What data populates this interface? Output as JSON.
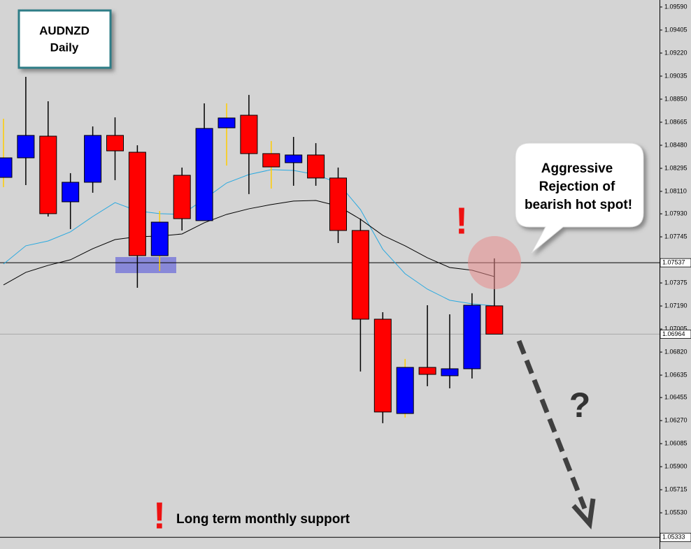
{
  "chart_data": {
    "type": "candlestick",
    "title": "AUDNZD",
    "subtitle": "Daily",
    "open": [
      1.08222,
      1.08379,
      1.08553,
      1.08026,
      1.08183,
      1.08559,
      1.08424,
      1.07594,
      1.08239,
      1.07875,
      1.0862,
      1.08721,
      1.08413,
      1.0834,
      1.08402,
      1.08217,
      1.07796,
      1.07084,
      1.06327,
      1.06697,
      1.0663,
      1.06686,
      1.07191
    ],
    "high": [
      1.08693,
      1.09029,
      1.08833,
      1.08256,
      1.08631,
      1.08704,
      1.0848,
      1.07953,
      1.08301,
      1.08816,
      1.08816,
      1.08884,
      1.08514,
      1.08547,
      1.08497,
      1.08301,
      1.07891,
      1.0714,
      1.06765,
      1.07196,
      1.07123,
      1.07292,
      1.07572
    ],
    "low": [
      1.08144,
      1.0816,
      1.07908,
      1.07807,
      1.08099,
      1.082,
      1.07336,
      1.07471,
      1.07796,
      1.07875,
      1.08317,
      1.08088,
      1.08132,
      1.08155,
      1.08155,
      1.07695,
      1.06664,
      1.06249,
      1.06294,
      1.06546,
      1.06529,
      1.06608,
      1.06964
    ],
    "close": [
      1.08379,
      1.08559,
      1.07931,
      1.08183,
      1.08559,
      1.08435,
      1.07594,
      1.07863,
      1.07891,
      1.08615,
      1.08699,
      1.08413,
      1.08306,
      1.08402,
      1.08217,
      1.07796,
      1.07084,
      1.06339,
      1.06697,
      1.06641,
      1.06686,
      1.07196,
      1.06964
    ],
    "up_color": "#0000ff",
    "down_color": "#ff0000",
    "wick_colors": [
      "#ffcc00",
      "#000000",
      "#000000",
      "#000000",
      "#000000",
      "#000000",
      "#000000",
      "#ffcc00",
      "#000000",
      "#000000",
      "#ffcc00",
      "#000000",
      "#ffcc00",
      "#000000",
      "#000000",
      "#000000",
      "#000000",
      "#000000",
      "#ffcc00",
      "#000000",
      "#000000",
      "#000000",
      "#000000"
    ],
    "lines": [
      {
        "color": "#29a9e0",
        "values": [
          1.07527,
          1.07673,
          1.07712,
          1.07785,
          1.07908,
          1.0802,
          1.07953,
          1.07931,
          1.07925,
          1.08048,
          1.08177,
          1.08245,
          1.08284,
          1.08278,
          1.08245,
          1.08177,
          1.07964,
          1.07645,
          1.07449,
          1.07325,
          1.07236,
          1.07207,
          1.07191
        ]
      },
      {
        "color": "#000000",
        "values": [
          1.07359,
          1.0746,
          1.07516,
          1.07561,
          1.0765,
          1.07723,
          1.07746,
          1.07751,
          1.07768,
          1.07858,
          1.07925,
          1.0797,
          1.08004,
          1.08032,
          1.08037,
          1.07992,
          1.07886,
          1.07757,
          1.07673,
          1.07577,
          1.07499,
          1.07477,
          1.07426
        ]
      }
    ],
    "ylim": [
      1.05301,
      1.09646
    ],
    "yticks": [
      {
        "value": 1.0959,
        "label": "1.09590"
      },
      1.09405,
      {
        "value": 1.0922,
        "label": "1.09220"
      },
      1.09035,
      {
        "value": 1.0885,
        "label": "1.08850"
      },
      1.08665,
      {
        "value": 1.0848,
        "label": "1.08480"
      },
      1.08295,
      {
        "value": 1.0811,
        "label": "1.08110"
      },
      {
        "value": 1.0793,
        "label": "1.07930"
      },
      1.07745,
      1.07375,
      {
        "value": 1.0719,
        "label": "1.07190"
      },
      1.07005,
      {
        "value": 1.0682,
        "label": "1.06820"
      },
      1.06635,
      1.06455,
      {
        "value": 1.0627,
        "label": "1.06270"
      },
      1.06085,
      {
        "value": 1.059,
        "label": "1.05900"
      },
      1.05715,
      {
        "value": 1.0553,
        "label": "1.05530"
      }
    ],
    "price_lines": [
      {
        "value": 1.07537,
        "color": "#000000"
      },
      {
        "value": 1.06964,
        "color": "#a8a8a8"
      },
      {
        "value": 1.05333,
        "color": "#000000"
      }
    ],
    "callout": [
      "Aggressive",
      "Rejection of",
      "bearish hot spot!"
    ],
    "support_note": "Long term monthly support",
    "marks": [
      "!",
      "!",
      "?"
    ]
  }
}
